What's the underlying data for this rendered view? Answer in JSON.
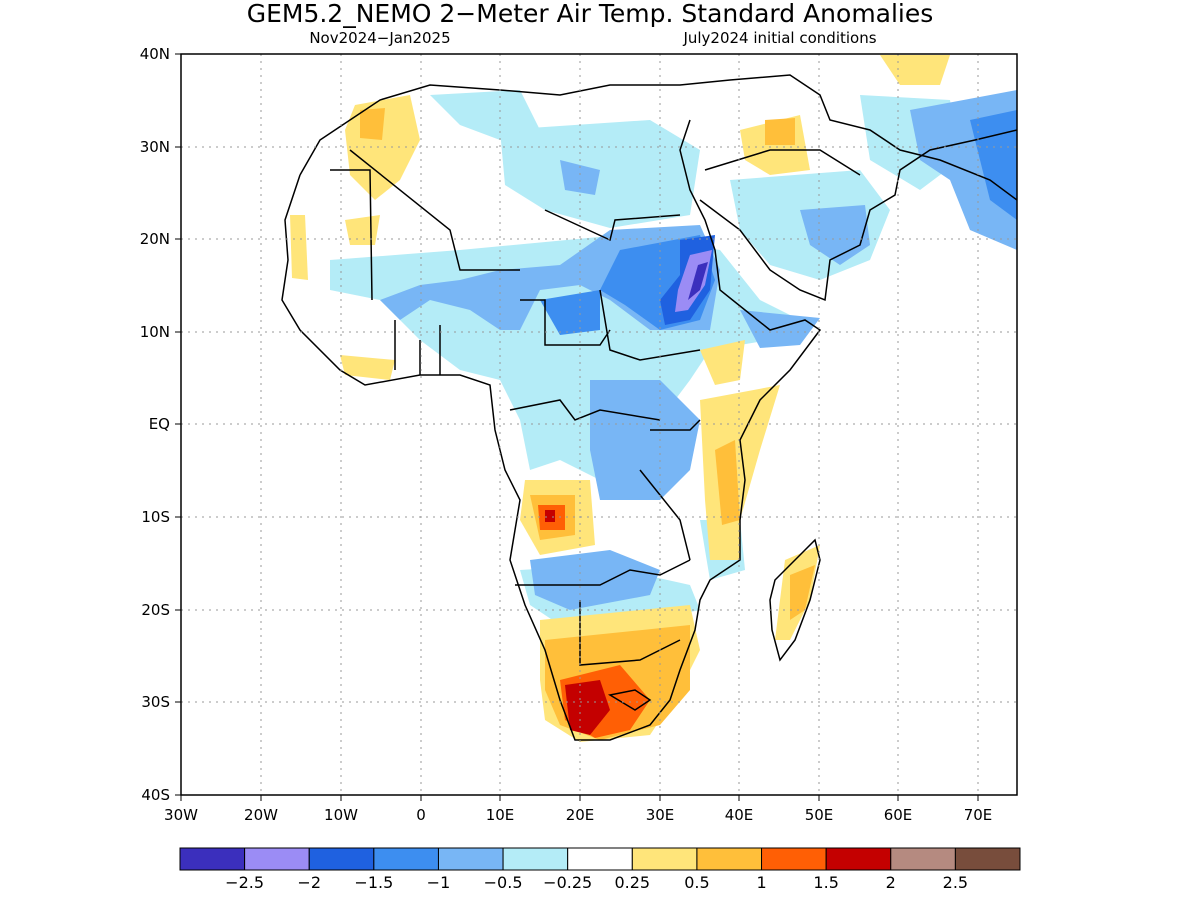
{
  "map": {
    "title": "GEM5.2_NEMO 2−Meter Air Temp. Standard Anomalies",
    "period": "Nov2024−Jan2025",
    "initial_conditions": "July2024 initial conditions",
    "lat_ticks": [
      "40N",
      "30N",
      "20N",
      "10N",
      "EQ",
      "10S",
      "20S",
      "30S",
      "40S"
    ],
    "lon_ticks": [
      "30W",
      "20W",
      "10W",
      "0",
      "10E",
      "20E",
      "30E",
      "40E",
      "50E",
      "60E",
      "70E"
    ],
    "extent": {
      "lon": [
        -30,
        75
      ],
      "lat": [
        -40,
        40
      ]
    },
    "grid": "dotted",
    "colorbar": {
      "colors": [
        "#3b2fbd",
        "#9b8cf5",
        "#1f61e0",
        "#3d8ef0",
        "#78b6f5",
        "#b4ecf7",
        "#ffffff",
        "#ffe57a",
        "#ffbf3a",
        "#ff5f05",
        "#c40000",
        "#b58a80",
        "#784d3c"
      ],
      "labels": [
        "−2.5",
        "−2",
        "−1.5",
        "−1",
        "−0.5",
        "−0.25",
        "0.25",
        "0.5",
        "1",
        "1.5",
        "2",
        "2.5"
      ]
    }
  }
}
